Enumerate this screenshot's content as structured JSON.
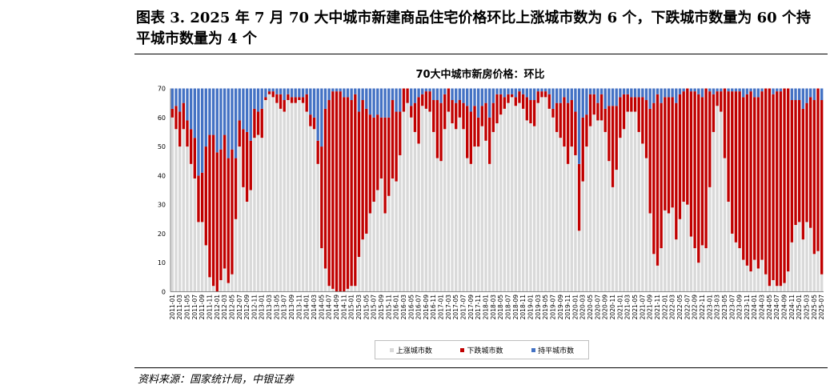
{
  "header": {
    "title": "图表 3. 2025 年 7 月 70 大中城市新建商品住宅价格环比上涨城市数为 6 个，下跌城市数量为 60 个持平城市数量为 4 个"
  },
  "footer": {
    "source": "资料来源：国家统计局，中银证券"
  },
  "colors": {
    "up": "#d9d9d9",
    "down": "#c00000",
    "flat": "#4472c4"
  },
  "chart_data": {
    "type": "bar",
    "stacked": true,
    "title": "70大中城市新房价格：环比",
    "xlabel": "",
    "ylabel": "",
    "ylim": [
      0,
      70
    ],
    "yticks": [
      0,
      10,
      20,
      30,
      40,
      50,
      60,
      70
    ],
    "x_start": "2011-01",
    "x_end": "2025-07",
    "x_tick_step_months": 2,
    "legend_position": "bottom",
    "series": [
      {
        "name": "上涨城市数",
        "values": [
          60,
          56,
          50,
          56,
          50,
          44,
          39,
          24,
          24,
          16,
          5,
          2,
          0,
          4,
          8,
          3,
          6,
          25,
          50,
          36,
          31,
          35,
          53,
          54,
          53,
          66,
          68,
          67,
          65,
          63,
          62,
          66,
          65,
          65,
          66,
          65,
          62,
          57,
          56,
          44,
          15,
          8,
          2,
          1,
          0,
          0,
          0,
          1,
          2,
          2,
          12,
          18,
          20,
          27,
          31,
          35,
          39,
          27,
          33,
          39,
          38,
          47,
          62,
          65,
          60,
          55,
          51,
          64,
          63,
          62,
          55,
          46,
          45,
          56,
          62,
          58,
          56,
          60,
          56,
          46,
          44,
          50,
          50,
          57,
          52,
          44,
          55,
          58,
          61,
          63,
          65,
          67,
          64,
          65,
          63,
          59,
          58,
          57,
          65,
          67,
          67,
          63,
          60,
          55,
          53,
          50,
          44,
          50,
          47,
          21,
          38,
          50,
          57,
          61,
          59,
          59,
          55,
          45,
          36,
          42,
          53,
          56,
          62,
          62,
          62,
          55,
          51,
          46,
          27,
          13,
          9,
          15,
          28,
          27,
          29,
          18,
          25,
          31,
          30,
          19,
          15,
          10,
          16,
          15,
          36,
          55,
          64,
          62,
          46,
          31,
          20,
          17,
          15,
          11,
          9,
          7,
          11,
          8,
          11,
          6,
          2,
          4,
          2,
          2,
          3,
          7,
          17,
          23,
          24,
          18,
          24,
          22,
          13,
          14,
          6
        ]
      },
      {
        "name": "下跌城市数",
        "values": [
          3,
          8,
          12,
          9,
          9,
          12,
          14,
          16,
          17,
          34,
          49,
          52,
          48,
          45,
          46,
          43,
          43,
          21,
          9,
          20,
          24,
          17,
          10,
          8,
          10,
          1,
          1,
          2,
          3,
          5,
          4,
          2,
          2,
          2,
          1,
          2,
          6,
          4,
          4,
          8,
          35,
          55,
          64,
          68,
          69,
          69,
          67,
          66,
          64,
          66,
          50,
          48,
          43,
          34,
          29,
          26,
          21,
          33,
          27,
          27,
          24,
          15,
          8,
          5,
          4,
          10,
          16,
          4,
          6,
          7,
          11,
          20,
          20,
          12,
          8,
          8,
          9,
          6,
          9,
          18,
          18,
          14,
          10,
          7,
          13,
          16,
          10,
          10,
          7,
          4,
          3,
          1,
          3,
          4,
          5,
          8,
          8,
          9,
          4,
          2,
          2,
          5,
          3,
          10,
          12,
          17,
          21,
          16,
          15,
          23,
          22,
          11,
          11,
          7,
          6,
          9,
          8,
          19,
          28,
          22,
          14,
          12,
          6,
          5,
          5,
          12,
          16,
          20,
          36,
          52,
          59,
          50,
          39,
          40,
          38,
          47,
          43,
          38,
          40,
          50,
          54,
          58,
          51,
          55,
          33,
          13,
          5,
          7,
          24,
          38,
          49,
          52,
          54,
          56,
          59,
          62,
          56,
          59,
          58,
          64,
          68,
          64,
          67,
          67,
          67,
          63,
          49,
          43,
          42,
          45,
          41,
          45,
          53,
          56,
          60
        ]
      },
      {
        "name": "持平城市数",
        "values": [
          7,
          6,
          8,
          5,
          11,
          14,
          17,
          30,
          29,
          20,
          16,
          16,
          22,
          21,
          16,
          24,
          21,
          24,
          11,
          14,
          15,
          18,
          7,
          8,
          7,
          3,
          1,
          1,
          2,
          2,
          4,
          2,
          3,
          3,
          3,
          3,
          2,
          9,
          10,
          18,
          20,
          7,
          4,
          1,
          1,
          1,
          3,
          3,
          4,
          2,
          8,
          4,
          7,
          9,
          10,
          9,
          10,
          10,
          10,
          4,
          8,
          8,
          0,
          0,
          6,
          5,
          3,
          2,
          1,
          1,
          4,
          4,
          5,
          2,
          0,
          4,
          5,
          4,
          5,
          6,
          8,
          6,
          10,
          6,
          5,
          10,
          5,
          2,
          2,
          3,
          2,
          2,
          3,
          1,
          2,
          3,
          4,
          4,
          1,
          1,
          1,
          2,
          7,
          5,
          5,
          3,
          5,
          4,
          8,
          26,
          10,
          9,
          2,
          2,
          5,
          2,
          7,
          6,
          6,
          6,
          3,
          2,
          2,
          3,
          3,
          3,
          3,
          4,
          7,
          5,
          2,
          5,
          3,
          3,
          3,
          5,
          2,
          1,
          0,
          1,
          1,
          2,
          3,
          0,
          1,
          2,
          1,
          1,
          0,
          1,
          1,
          1,
          1,
          3,
          2,
          1,
          3,
          3,
          1,
          0,
          0,
          2,
          1,
          1,
          0,
          0,
          4,
          4,
          4,
          7,
          5,
          3,
          4,
          0,
          4
        ]
      }
    ]
  }
}
